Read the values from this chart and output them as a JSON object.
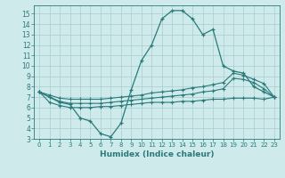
{
  "curve_main": [
    7.5,
    7.0,
    6.5,
    6.3,
    5.0,
    4.7,
    3.5,
    3.2,
    4.5,
    7.7,
    10.5,
    12.0,
    14.5,
    15.3,
    15.3,
    14.5,
    13.0,
    13.5,
    10.0,
    9.5,
    9.3,
    8.0,
    7.5,
    7.0
  ],
  "curve_upper": [
    7.5,
    7.2,
    6.9,
    6.8,
    6.8,
    6.8,
    6.8,
    6.9,
    7.0,
    7.1,
    7.2,
    7.4,
    7.5,
    7.6,
    7.7,
    7.9,
    8.0,
    8.2,
    8.4,
    9.3,
    9.1,
    8.7,
    8.3,
    7.0
  ],
  "curve_mid": [
    7.5,
    7.0,
    6.6,
    6.4,
    6.4,
    6.4,
    6.4,
    6.5,
    6.6,
    6.7,
    6.8,
    6.9,
    7.0,
    7.1,
    7.2,
    7.3,
    7.5,
    7.6,
    7.8,
    8.8,
    8.7,
    8.4,
    7.8,
    7.0
  ],
  "curve_lower": [
    7.5,
    6.5,
    6.2,
    6.0,
    6.0,
    6.0,
    6.1,
    6.1,
    6.2,
    6.3,
    6.4,
    6.5,
    6.5,
    6.5,
    6.6,
    6.6,
    6.7,
    6.8,
    6.8,
    6.9,
    6.9,
    6.9,
    6.8,
    7.0
  ],
  "color": "#2a7a7a",
  "bg_color": "#ceeaea",
  "grid_major_color": "#a8cccc",
  "grid_minor_color": "#bcdcdc",
  "xlabel": "Humidex (Indice chaleur)",
  "ylim": [
    3,
    15.8
  ],
  "xlim": [
    -0.5,
    23.5
  ],
  "yticks": [
    3,
    4,
    5,
    6,
    7,
    8,
    9,
    10,
    11,
    12,
    13,
    14,
    15
  ],
  "xticks": [
    0,
    1,
    2,
    3,
    4,
    5,
    6,
    7,
    8,
    9,
    10,
    11,
    12,
    13,
    14,
    15,
    16,
    17,
    18,
    19,
    20,
    21,
    22,
    23
  ]
}
